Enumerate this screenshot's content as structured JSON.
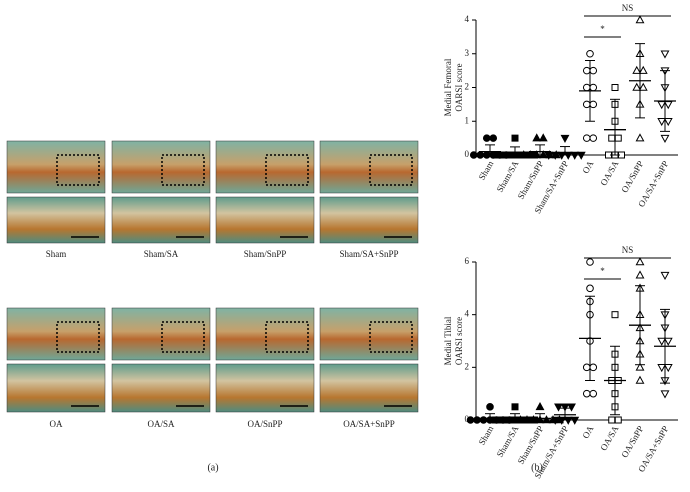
{
  "panel_a": {
    "labels": [
      "Sham",
      "Sham/SA",
      "Sham/SnPP",
      "Sham/SA+SnPP",
      "OA",
      "OA/SA",
      "OA/SnPP",
      "OA/SA+SnPP"
    ],
    "caption": "(a)"
  },
  "panel_b": {
    "caption": "(b)"
  },
  "chart_data": [
    {
      "type": "dotplot",
      "ylabel": [
        "Medial Femoral",
        "OARSI score"
      ],
      "ylim": [
        0,
        4
      ],
      "yticks": [
        0,
        1,
        2,
        3,
        4
      ],
      "annotations": [
        "*",
        "NS"
      ],
      "series": [
        {
          "name": "Sham",
          "marker": "circle",
          "filled": true,
          "points": [
            0.5,
            0.5,
            0,
            0,
            0,
            0,
            0,
            0
          ],
          "mean": 0.1,
          "sd": 0.2
        },
        {
          "name": "Sham/SA",
          "marker": "square",
          "filled": true,
          "points": [
            0.5,
            0,
            0,
            0,
            0,
            0,
            0,
            0
          ],
          "mean": 0.06,
          "sd": 0.18
        },
        {
          "name": "Sham/SnPP",
          "marker": "triangle",
          "filled": true,
          "points": [
            0.5,
            0.5,
            0,
            0,
            0,
            0,
            0,
            0
          ],
          "mean": 0.1,
          "sd": 0.2
        },
        {
          "name": "Sham/SA+SnPP",
          "marker": "down",
          "filled": true,
          "points": [
            0.5,
            0,
            0,
            0,
            0,
            0,
            0
          ],
          "mean": 0.07,
          "sd": 0.18
        },
        {
          "name": "OA",
          "marker": "circle",
          "filled": false,
          "points": [
            3,
            2.5,
            2.5,
            2,
            2,
            1.5,
            1.5,
            0.5,
            0.5
          ],
          "mean": 1.9,
          "sd": 0.9
        },
        {
          "name": "OA/SA",
          "marker": "square",
          "filled": false,
          "points": [
            2,
            1.5,
            1,
            0.5,
            0.5,
            0,
            0,
            0
          ],
          "mean": 0.75,
          "sd": 0.9
        },
        {
          "name": "OA/SnPP",
          "marker": "triangle",
          "filled": false,
          "points": [
            4,
            3,
            2.5,
            2.5,
            2,
            2,
            1.5,
            0.5
          ],
          "mean": 2.2,
          "sd": 1.1
        },
        {
          "name": "OA/SA+SnPP",
          "marker": "down",
          "filled": false,
          "points": [
            3,
            2.5,
            2,
            1.5,
            1.5,
            1,
            1,
            0.5
          ],
          "mean": 1.6,
          "sd": 0.9
        }
      ]
    },
    {
      "type": "dotplot",
      "ylabel": [
        "Medial Tibial",
        "OARSI score"
      ],
      "ylim": [
        0,
        6
      ],
      "yticks": [
        0,
        2,
        4,
        6
      ],
      "annotations": [
        "*",
        "NS"
      ],
      "series": [
        {
          "name": "Sham",
          "marker": "circle",
          "filled": true,
          "points": [
            0.5,
            0,
            0,
            0,
            0,
            0,
            0,
            0
          ],
          "mean": 0.06,
          "sd": 0.18
        },
        {
          "name": "Sham/SA",
          "marker": "square",
          "filled": true,
          "points": [
            0.5,
            0,
            0,
            0,
            0,
            0,
            0,
            0
          ],
          "mean": 0.06,
          "sd": 0.18
        },
        {
          "name": "Sham/SnPP",
          "marker": "triangle",
          "filled": true,
          "points": [
            0.5,
            0,
            0,
            0,
            0,
            0,
            0,
            0
          ],
          "mean": 0.06,
          "sd": 0.18
        },
        {
          "name": "Sham/SA+SnPP",
          "marker": "down",
          "filled": true,
          "points": [
            0.5,
            0.5,
            0.5,
            0,
            0,
            0,
            0
          ],
          "mean": 0.2,
          "sd": 0.25
        },
        {
          "name": "OA",
          "marker": "circle",
          "filled": false,
          "points": [
            6,
            5,
            4.5,
            4,
            3,
            2,
            2,
            1,
            1
          ],
          "mean": 3.1,
          "sd": 1.6
        },
        {
          "name": "OA/SA",
          "marker": "square",
          "filled": false,
          "points": [
            4,
            2.5,
            2,
            1.5,
            1.5,
            1,
            0.5,
            0,
            0
          ],
          "mean": 1.5,
          "sd": 1.3
        },
        {
          "name": "OA/SnPP",
          "marker": "triangle",
          "filled": false,
          "points": [
            6,
            5.5,
            5,
            4,
            3.5,
            3,
            2.5,
            2,
            1.5
          ],
          "mean": 3.6,
          "sd": 1.5
        },
        {
          "name": "OA/SA+SnPP",
          "marker": "down",
          "filled": false,
          "points": [
            5.5,
            4,
            3.5,
            3,
            3,
            2,
            2,
            1.5,
            1
          ],
          "mean": 2.8,
          "sd": 1.4
        }
      ]
    }
  ]
}
